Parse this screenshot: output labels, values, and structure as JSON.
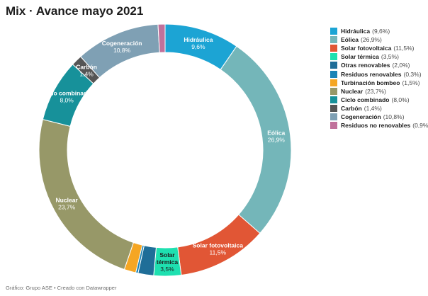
{
  "title": "Mix · Avance mayo 2021",
  "footer": "Gráfico: Grupo ASE • Creado con Datawrapper",
  "chart_data": {
    "type": "pie",
    "title": "Mix · Avance mayo 2021",
    "donut": true,
    "legend_position": "right",
    "slices": [
      {
        "name": "Hidráulica",
        "value": 9.6,
        "label": "9,6%",
        "color": "#1ca4d4",
        "inner_label": [
          "Hidráulica",
          "9,6%"
        ]
      },
      {
        "name": "Eólica",
        "value": 26.9,
        "label": "26,9%",
        "color": "#74b6b9",
        "inner_label": [
          "Eólica",
          "26,9%"
        ]
      },
      {
        "name": "Solar fotovoltaica",
        "value": 11.5,
        "label": "11,5%",
        "color": "#e15635",
        "inner_label": [
          "Solar fotovoltaica",
          "11,5%"
        ]
      },
      {
        "name": "Solar térmica",
        "value": 3.5,
        "label": "3,5%",
        "color": "#1ee0b0",
        "inner_label": [
          "Solar",
          "térmica",
          "3,5%"
        ]
      },
      {
        "name": "Otras renovables",
        "value": 2.0,
        "label": "2,0%",
        "color": "#1f6e98",
        "inner_label": []
      },
      {
        "name": "Residuos renovables",
        "value": 0.3,
        "label": "0,3%",
        "color": "#1b84b6",
        "inner_label": []
      },
      {
        "name": "Turbinación bombeo",
        "value": 1.5,
        "label": "1,5%",
        "color": "#f5a623",
        "inner_label": []
      },
      {
        "name": "Nuclear",
        "value": 23.7,
        "label": "23,7%",
        "color": "#979868",
        "inner_label": [
          "Nuclear",
          "23,7%"
        ]
      },
      {
        "name": "Ciclo combinado",
        "value": 8.0,
        "label": "8,0%",
        "color": "#17919a",
        "inner_label": [
          "Ciclo combinado",
          "8,0%"
        ]
      },
      {
        "name": "Carbón",
        "value": 1.4,
        "label": "1,4%",
        "color": "#555555",
        "inner_label": [
          "Carbón",
          "1,4%"
        ]
      },
      {
        "name": "Cogeneración",
        "value": 10.8,
        "label": "10,8%",
        "color": "#7fa0b4",
        "inner_label": [
          "Cogeneración",
          "10,8%"
        ]
      },
      {
        "name": "Residuos no renovables",
        "value": 0.9,
        "label": "0,9%",
        "color": "#c0719b",
        "inner_label": []
      }
    ]
  }
}
